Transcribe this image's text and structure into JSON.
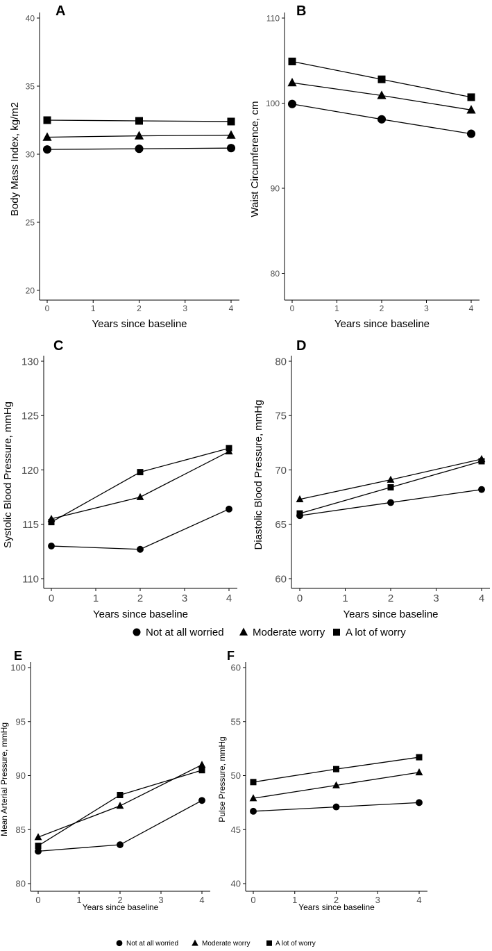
{
  "chart_data": [
    {
      "id": "A",
      "type": "line",
      "panel_label": "A",
      "xlabel": "Years since baseline",
      "ylabel": "Body Mass Index, kg/m2",
      "xlim": [
        0,
        4
      ],
      "ylim": [
        20,
        40
      ],
      "xticks": [
        0,
        1,
        2,
        3,
        4
      ],
      "yticks": [
        20,
        25,
        30,
        35,
        40
      ],
      "series": [
        {
          "name": "Not at all worried",
          "marker": "circle",
          "x": [
            0,
            2,
            4
          ],
          "values": [
            30.35,
            30.4,
            30.45
          ]
        },
        {
          "name": "Moderate worry",
          "marker": "triangle",
          "x": [
            0,
            2,
            4
          ],
          "values": [
            31.25,
            31.35,
            31.4
          ]
        },
        {
          "name": "A lot of worry",
          "marker": "square",
          "x": [
            0,
            2,
            4
          ],
          "values": [
            32.5,
            32.45,
            32.4
          ]
        }
      ]
    },
    {
      "id": "B",
      "type": "line",
      "panel_label": "B",
      "xlabel": "Years since baseline",
      "ylabel": "Waist Circumference, cm",
      "xlim": [
        0,
        4
      ],
      "ylim": [
        78,
        110
      ],
      "xticks": [
        0,
        1,
        2,
        3,
        4
      ],
      "yticks": [
        80,
        90,
        100,
        110
      ],
      "series": [
        {
          "name": "Not at all worried",
          "marker": "circle",
          "x": [
            0,
            2,
            4
          ],
          "values": [
            99.9,
            98.1,
            96.4
          ]
        },
        {
          "name": "Moderate worry",
          "marker": "triangle",
          "x": [
            0,
            2,
            4
          ],
          "values": [
            102.4,
            100.9,
            99.2
          ]
        },
        {
          "name": "A lot of worry",
          "marker": "square",
          "x": [
            0,
            2,
            4
          ],
          "values": [
            104.9,
            102.8,
            100.7
          ]
        }
      ]
    },
    {
      "id": "C",
      "type": "line",
      "panel_label": "C",
      "xlabel": "Years since baseline",
      "ylabel": "Systolic Blood Pressure, mmHg",
      "xlim": [
        0,
        4
      ],
      "ylim": [
        110,
        130
      ],
      "xticks": [
        0,
        1,
        2,
        3,
        4
      ],
      "yticks": [
        110,
        115,
        120,
        125,
        130
      ],
      "series": [
        {
          "name": "Not at all worried",
          "marker": "circle",
          "x": [
            0,
            2,
            4
          ],
          "values": [
            113.0,
            112.7,
            116.4
          ]
        },
        {
          "name": "Moderate worry",
          "marker": "triangle",
          "x": [
            0,
            2,
            4
          ],
          "values": [
            115.5,
            117.5,
            121.7
          ]
        },
        {
          "name": "A lot of worry",
          "marker": "square",
          "x": [
            0,
            2,
            4
          ],
          "values": [
            115.2,
            119.8,
            122.0
          ]
        }
      ]
    },
    {
      "id": "D",
      "type": "line",
      "panel_label": "D",
      "xlabel": "Years since baseline",
      "ylabel": "Diastolic Blood Pressure, mmHg",
      "xlim": [
        0,
        4
      ],
      "ylim": [
        60,
        80
      ],
      "xticks": [
        0,
        1,
        2,
        3,
        4
      ],
      "yticks": [
        60,
        65,
        70,
        75,
        80
      ],
      "series": [
        {
          "name": "Not at all worried",
          "marker": "circle",
          "x": [
            0,
            2,
            4
          ],
          "values": [
            65.8,
            67.0,
            68.2
          ]
        },
        {
          "name": "Moderate worry",
          "marker": "triangle",
          "x": [
            0,
            2,
            4
          ],
          "values": [
            67.3,
            69.1,
            71.0
          ]
        },
        {
          "name": "A lot of worry",
          "marker": "square",
          "x": [
            0,
            2,
            4
          ],
          "values": [
            66.0,
            68.4,
            70.8
          ]
        }
      ]
    },
    {
      "id": "E",
      "type": "line",
      "panel_label": "E",
      "xlabel": "Years since baseline",
      "ylabel": "Mean Arterial Pressure, mmHg",
      "xlim": [
        0,
        4
      ],
      "ylim": [
        80,
        100
      ],
      "xticks": [
        0,
        1,
        2,
        3,
        4
      ],
      "yticks": [
        80,
        85,
        90,
        95,
        100
      ],
      "series": [
        {
          "name": "Not at all worried",
          "marker": "circle",
          "x": [
            0,
            2,
            4
          ],
          "values": [
            83.0,
            83.6,
            87.7
          ]
        },
        {
          "name": "Moderate worry",
          "marker": "triangle",
          "x": [
            0,
            2,
            4
          ],
          "values": [
            84.3,
            87.2,
            91.0
          ]
        },
        {
          "name": "A lot of worry",
          "marker": "square",
          "x": [
            0,
            2,
            4
          ],
          "values": [
            83.5,
            88.2,
            90.5
          ]
        }
      ]
    },
    {
      "id": "F",
      "type": "line",
      "panel_label": "F",
      "xlabel": "Years since baseline",
      "ylabel": "Pulse Pressure, mmHg",
      "xlim": [
        0,
        4
      ],
      "ylim": [
        40,
        60
      ],
      "xticks": [
        0,
        1,
        2,
        3,
        4
      ],
      "yticks": [
        40,
        45,
        50,
        55,
        60
      ],
      "series": [
        {
          "name": "Not at all worried",
          "marker": "circle",
          "x": [
            0,
            2,
            4
          ],
          "values": [
            46.7,
            47.1,
            47.5
          ]
        },
        {
          "name": "Moderate worry",
          "marker": "triangle",
          "x": [
            0,
            2,
            4
          ],
          "values": [
            47.9,
            49.1,
            50.3
          ]
        },
        {
          "name": "A lot of worry",
          "marker": "square",
          "x": [
            0,
            2,
            4
          ],
          "values": [
            49.4,
            50.6,
            51.7
          ]
        }
      ]
    }
  ],
  "legends": [
    {
      "id": "legend-top",
      "items": [
        {
          "label": "Not at all worried",
          "marker": "circle"
        },
        {
          "label": "Moderate worry",
          "marker": "triangle"
        },
        {
          "label": "A lot of worry",
          "marker": "square"
        }
      ]
    },
    {
      "id": "legend-bottom",
      "items": [
        {
          "label": "Not at all worried",
          "marker": "circle"
        },
        {
          "label": "Moderate worry",
          "marker": "triangle"
        },
        {
          "label": "A lot of worry",
          "marker": "square"
        }
      ]
    }
  ],
  "colors": {
    "ink": "#000000",
    "tick_text": "#4d4d4d",
    "background": "#ffffff"
  }
}
